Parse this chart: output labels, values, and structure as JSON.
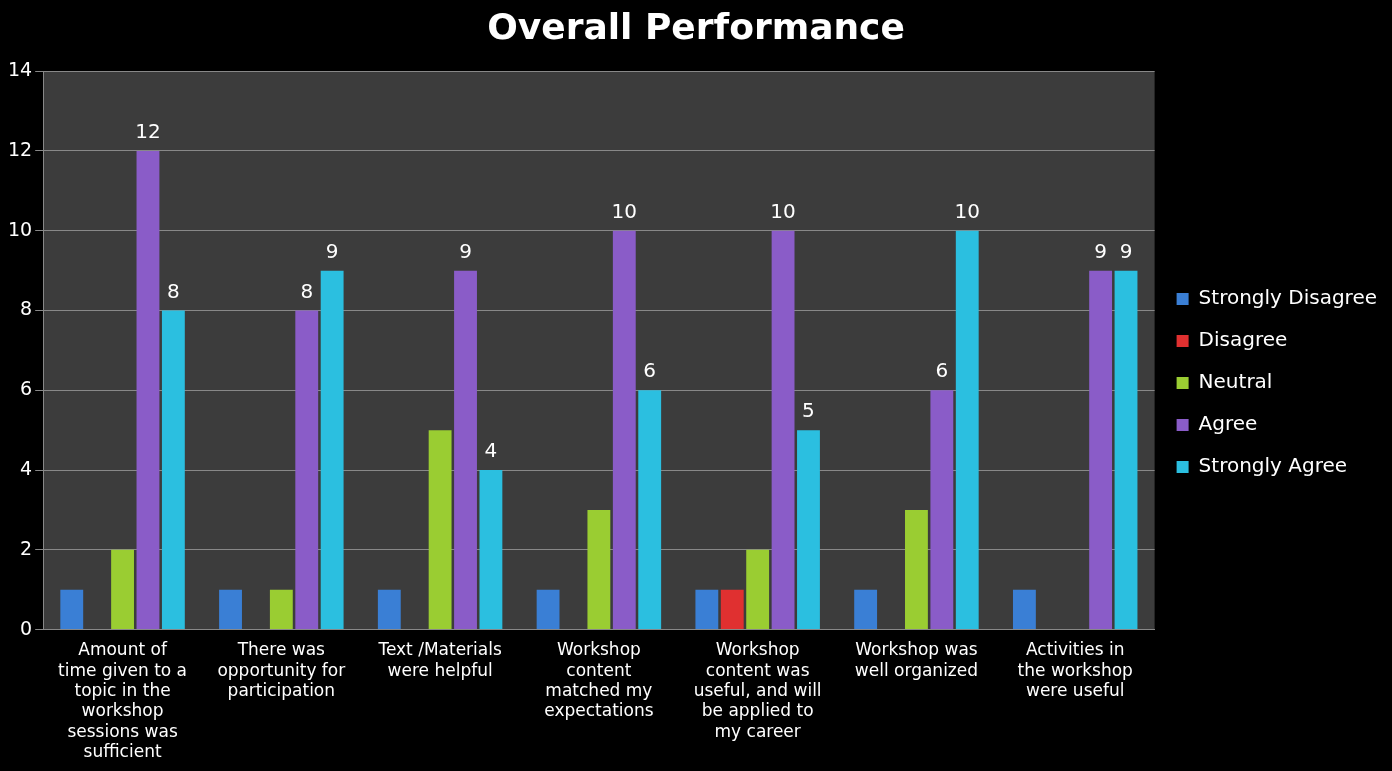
{
  "chart_data": {
    "type": "bar",
    "title": "Overall Performance",
    "categories": [
      "Amount of time given to a topic in the workshop sessions was sufficient",
      "There was opportunity for participation",
      "Text /Materials were helpful",
      "Workshop content matched my expectations",
      "Workshop content was useful, and will be applied to my career",
      "Workshop was well organized",
      "Activities in the workshop were useful"
    ],
    "series": [
      {
        "name": "Strongly Disagree",
        "color": "#3a7fd5",
        "values": [
          1,
          1,
          1,
          1,
          1,
          1,
          1
        ]
      },
      {
        "name": "Disagree",
        "color": "#e03030",
        "values": [
          null,
          null,
          null,
          null,
          1,
          null,
          null
        ]
      },
      {
        "name": "Neutral",
        "color": "#9acd32",
        "values": [
          2,
          1,
          5,
          3,
          2,
          3,
          null
        ]
      },
      {
        "name": "Agree",
        "color": "#8a5cc8",
        "values": [
          12,
          8,
          9,
          10,
          10,
          6,
          9
        ],
        "value_labels": [
          "12",
          "8",
          "9",
          "10",
          "10",
          "6",
          "9"
        ]
      },
      {
        "name": "Strongly Agree",
        "color": "#2bbfe0",
        "values": [
          8,
          9,
          4,
          6,
          5,
          10,
          9
        ],
        "value_labels": [
          "8",
          "9",
          "4",
          "6",
          "5",
          "10",
          "9"
        ]
      }
    ],
    "ylim": [
      0,
      14
    ],
    "yticks": [
      0,
      2,
      4,
      6,
      8,
      10,
      12,
      14
    ],
    "grid": "y",
    "legend": "right"
  }
}
